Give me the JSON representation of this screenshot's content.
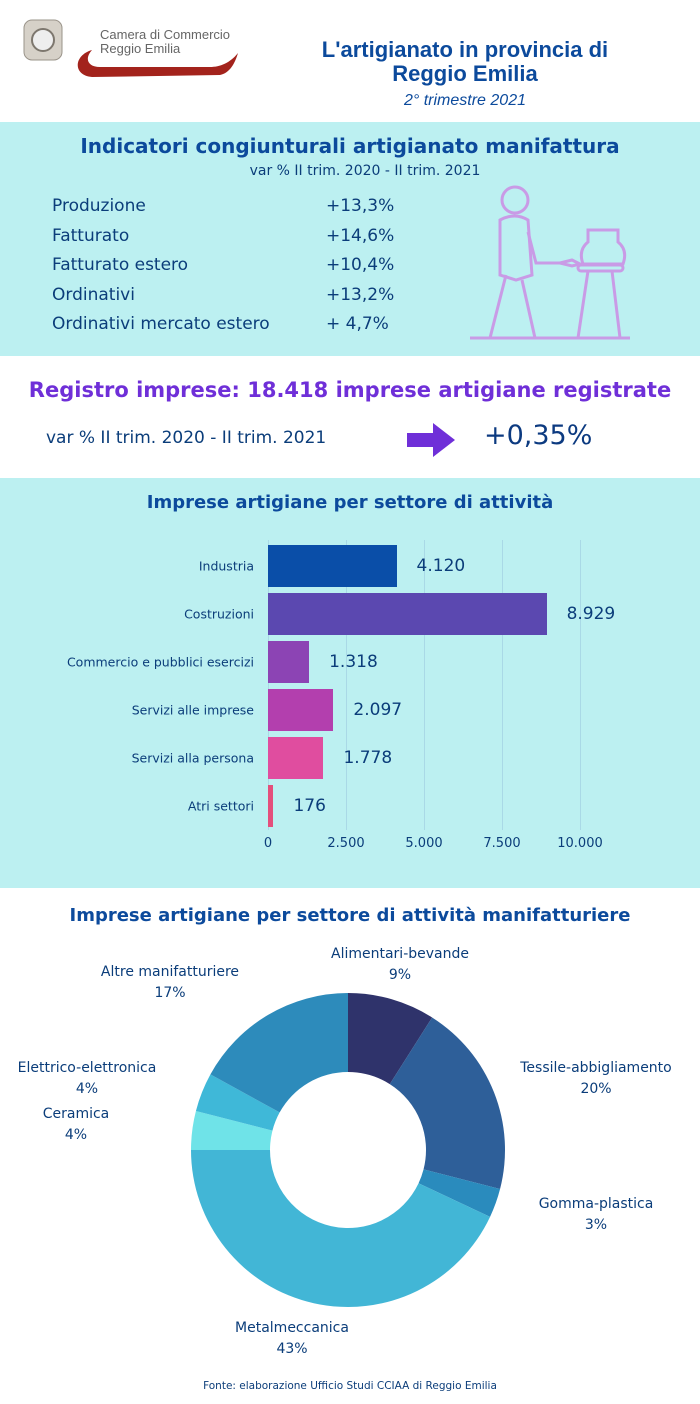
{
  "header": {
    "logo_text_1": "Camera di Commercio",
    "logo_text_2": "Reggio Emilia",
    "title_line1": "L'artigianato in provincia di",
    "title_line2": "Reggio Emilia",
    "subtitle": "2° trimestre 2021"
  },
  "indicators": {
    "title": "Indicatori congiunturali artigianato manifattura",
    "subtitle": "var % II trim. 2020 - II trim. 2021",
    "rows": [
      {
        "label": "Produzione",
        "value": "+13,3%"
      },
      {
        "label": "Fatturato",
        "value": "+14,6%"
      },
      {
        "label": "Fatturato estero",
        "value": "+10,4%"
      },
      {
        "label": "Ordinativi",
        "value": "+13,2%"
      },
      {
        "label": "Ordinativi mercato estero",
        "value": "+ 4,7%"
      }
    ]
  },
  "registro": {
    "title": "Registro imprese: 18.418 imprese artigiane registrate",
    "var_label": "var % II trim. 2020 - II trim. 2021",
    "var_value": "+0,35%"
  },
  "footer": {
    "source": "Fonte: elaborazione Ufficio Studi CCIAA di Reggio Emilia"
  },
  "chart_data": [
    {
      "type": "bar",
      "orientation": "horizontal",
      "title": "Imprese artigiane per settore di attività",
      "categories": [
        "Industria",
        "Costruzioni",
        "Commercio e pubblici esercizi",
        "Servizi alle imprese",
        "Servizi alla persona",
        "Atri settori"
      ],
      "values": [
        4120,
        8929,
        1318,
        2097,
        1778,
        176
      ],
      "value_labels": [
        "4.120",
        "8.929",
        "1.318",
        "2.097",
        "1.778",
        "176"
      ],
      "colors": [
        "#0a4ea8",
        "#5b48b0",
        "#8c44b4",
        "#b33fae",
        "#e04d9f",
        "#e44f7c"
      ],
      "xlim": [
        0,
        10000
      ],
      "ticks": [
        0,
        2500,
        5000,
        7500,
        10000
      ],
      "tick_labels": [
        "0",
        "2.500",
        "5.000",
        "7.500",
        "10.000"
      ],
      "grid": true
    },
    {
      "type": "pie",
      "donut": true,
      "title": "Imprese artigiane per settore di attività manifatturiere",
      "categories": [
        "Alimentari-bevande",
        "Tessile-abbigliamento",
        "Gomma-plastica",
        "Metalmeccanica",
        "Ceramica",
        "Elettrico-elettronica",
        "Altre manifatturiere"
      ],
      "values": [
        9,
        20,
        3,
        43,
        4,
        4,
        17
      ],
      "value_labels": [
        "9%",
        "20%",
        "3%",
        "43%",
        "4%",
        "4%",
        "17%"
      ],
      "colors": [
        "#2f336b",
        "#2e5f99",
        "#2a8bbd",
        "#42b6d6",
        "#6fe3e8",
        "#3fb8d8",
        "#2d8bbb"
      ]
    }
  ]
}
